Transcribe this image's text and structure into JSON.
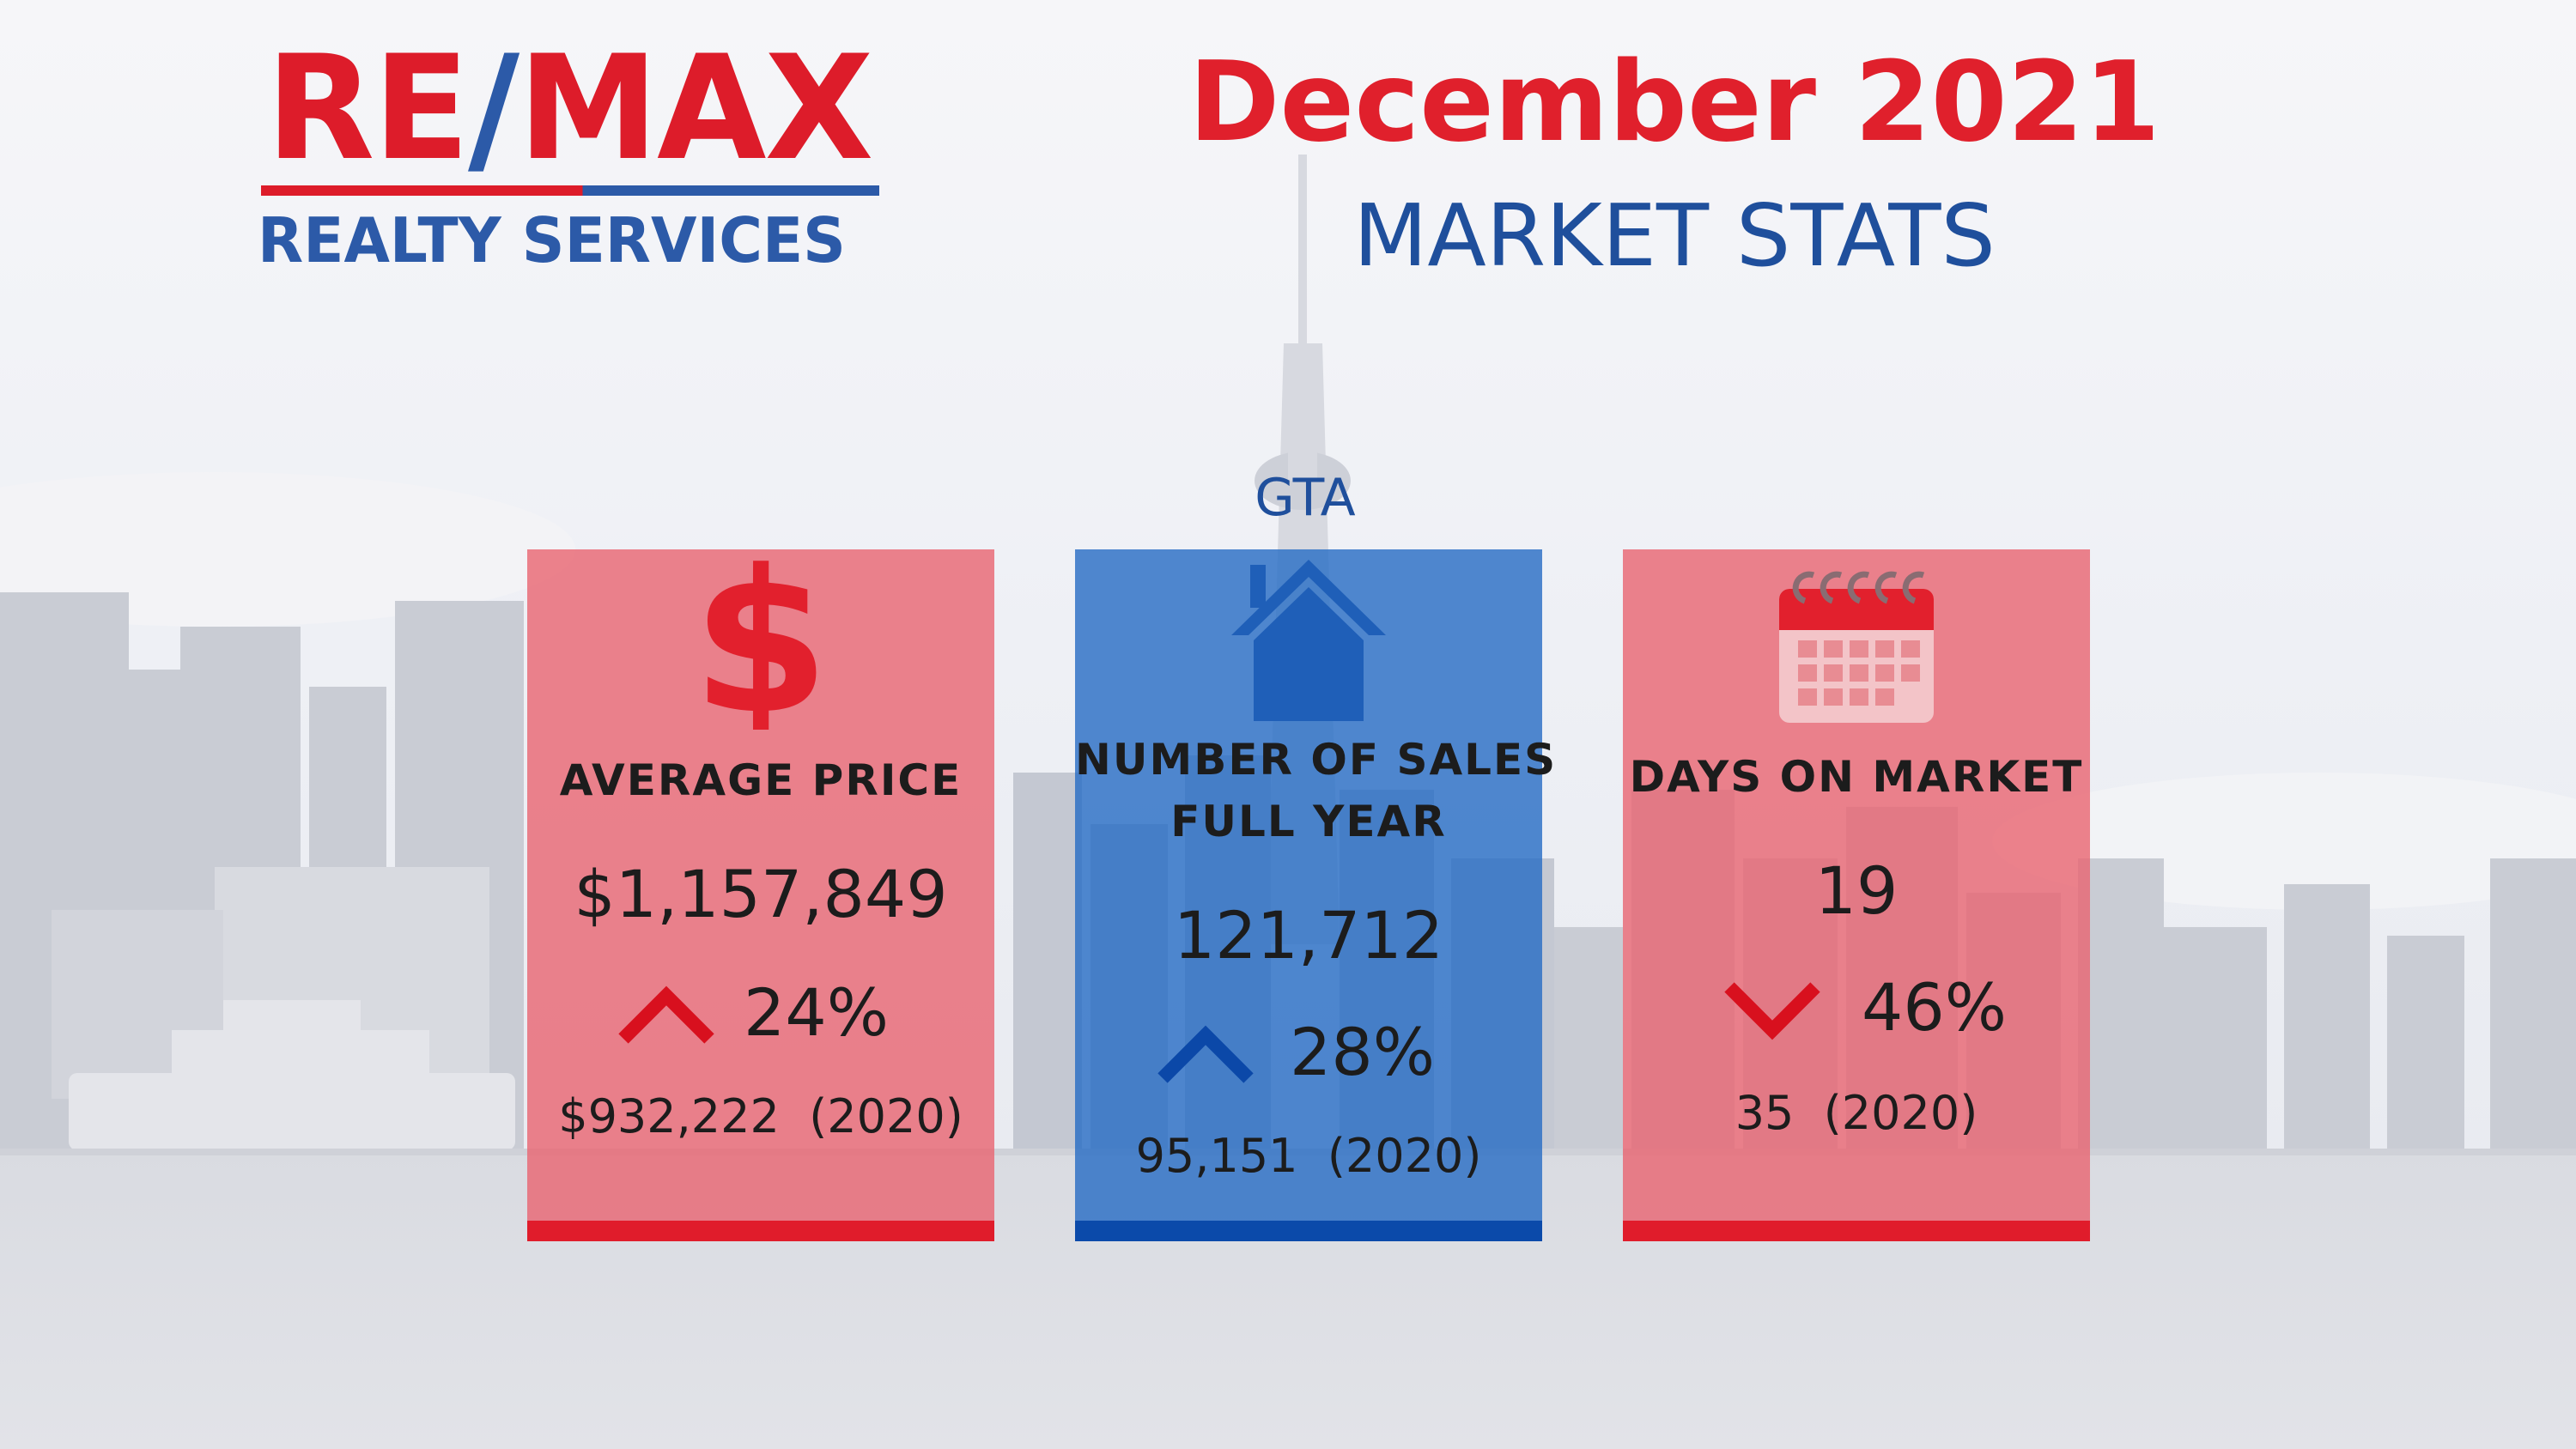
{
  "brand": {
    "logo_re": "RE",
    "logo_slash": "/",
    "logo_max": "MAX",
    "logo_sub": "REALTY SERVICES"
  },
  "header": {
    "month": "December 2021",
    "subtitle": "MARKET STATS"
  },
  "region": "GTA",
  "colors": {
    "brand_red": "#dd1c2a",
    "brand_blue": "#2c5aa8",
    "card_red": "#e86470",
    "card_blue": "#266cc4"
  },
  "cards": [
    {
      "icon": "dollar-icon",
      "label_line1": "AVERAGE PRICE",
      "value": "$1,157,849",
      "change_direction": "up",
      "change_pct": "24%",
      "previous": "$932,222  (2020)"
    },
    {
      "icon": "house-icon",
      "label_line1": "NUMBER OF SALES",
      "label_line2": "FULL YEAR",
      "value": "121,712",
      "change_direction": "up",
      "change_pct": "28%",
      "previous": "95,151  (2020)"
    },
    {
      "icon": "calendar-icon",
      "label_line1": "DAYS ON MARKET",
      "value": "19",
      "change_direction": "down",
      "change_pct": "46%",
      "previous": "35  (2020)"
    }
  ]
}
